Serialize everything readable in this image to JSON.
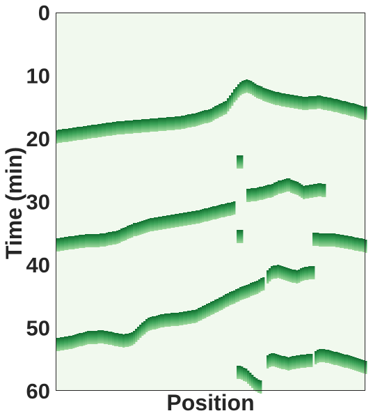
{
  "chart_data": {
    "type": "heatmap",
    "xlabel": "Position",
    "ylabel": "Time (min)",
    "ylim": [
      0,
      60
    ],
    "y_inverted": true,
    "yticks": [
      "0",
      "10",
      "20",
      "30",
      "40",
      "50",
      "60"
    ],
    "x_ticks_shown": false,
    "grid": false,
    "colormap": "Greens",
    "colors": {
      "background": "#f1f9ee",
      "band_top": "#0e6d2e",
      "band_mid": "#3ea55a",
      "band_bottom": "#9ed89c",
      "axis": "#262626"
    },
    "x_domain": [
      0,
      100
    ],
    "series": [
      {
        "segments": [
          {
            "x": [
              0,
              10,
              20,
              30,
              40,
              45,
              50,
              55,
              58,
              60,
              62,
              65,
              70,
              75,
              80,
              85,
              90,
              95,
              100
            ],
            "y": [
              19.0,
              18.3,
              17.6,
              17.2,
              16.8,
              16.3,
              15.6,
              14.3,
              12.3,
              11.2,
              10.9,
              11.8,
              12.8,
              13.3,
              13.7,
              13.5,
              14.0,
              14.6,
              15.3
            ]
          }
        ]
      },
      {
        "segments": [
          {
            "x": [
              0,
              5,
              10,
              15,
              20,
              25,
              30,
              35,
              40,
              45,
              50,
              55,
              57.5
            ],
            "y": [
              36.2,
              35.8,
              35.5,
              35.4,
              34.9,
              33.8,
              33.0,
              32.6,
              32.2,
              31.8,
              31.2,
              30.6,
              30.3
            ]
          },
          {
            "x": [
              58.5,
              60.5
            ],
            "y": [
              23.0,
              23.0
            ]
          },
          {
            "x": [
              61.5,
              65,
              70,
              72,
              75,
              78,
              80,
              85,
              87
            ],
            "y": [
              28.3,
              28.1,
              27.5,
              27.0,
              26.6,
              27.2,
              27.8,
              27.4,
              27.5
            ]
          },
          {
            "x": [
              58.5,
              60.5
            ],
            "y": [
              34.8,
              34.8
            ]
          },
          {
            "x": [
              83,
              85,
              90,
              95,
              100
            ],
            "y": [
              35.2,
              35.3,
              35.4,
              35.8,
              36.3
            ]
          }
        ]
      },
      {
        "segments": [
          {
            "x": [
              0,
              5,
              10,
              15,
              20,
              22,
              25,
              28,
              30,
              35,
              40,
              45,
              50,
              55,
              60,
              65,
              67
            ],
            "y": [
              52.0,
              51.6,
              50.9,
              50.7,
              51.2,
              51.4,
              51.0,
              49.5,
              48.7,
              48.1,
              47.9,
              47.5,
              46.3,
              45.0,
              43.8,
              42.9,
              42.3
            ]
          },
          {
            "x": [
              68,
              70,
              72,
              75,
              78,
              80,
              83,
              83.5
            ],
            "y": [
              41.4,
              40.5,
              40.3,
              40.9,
              41.2,
              40.7,
              40.5,
              40.6
            ]
          },
          {
            "x": [
              58.5,
              60,
              62,
              63.5,
              64.5,
              66.5
            ],
            "y": [
              56.3,
              56.4,
              57.0,
              57.8,
              58.3,
              58.8
            ]
          },
          {
            "x": [
              68,
              70,
              72,
              75,
              78,
              80,
              83
            ],
            "y": [
              54.8,
              54.3,
              54.6,
              55.0,
              54.7,
              54.6,
              54.4
            ]
          },
          {
            "x": [
              83.5,
              85,
              88,
              90,
              93,
              95,
              98,
              100
            ],
            "y": [
              54.1,
              53.7,
              53.8,
              54.1,
              54.5,
              54.7,
              55.2,
              55.6
            ]
          }
        ]
      }
    ]
  }
}
